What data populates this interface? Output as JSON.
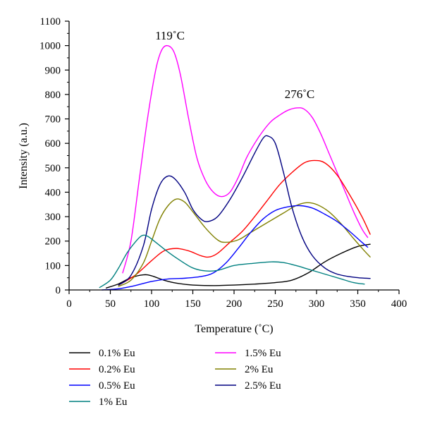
{
  "chart_data": {
    "type": "line",
    "xlabel": "Temperature (˚C)",
    "ylabel": "Intensity (a.u.)",
    "xlim": [
      0,
      400
    ],
    "ylim": [
      0,
      1100
    ],
    "xticks": [
      0,
      50,
      100,
      150,
      200,
      250,
      300,
      350,
      400
    ],
    "yticks": [
      0,
      100,
      200,
      300,
      400,
      500,
      600,
      700,
      800,
      900,
      1000,
      1100
    ],
    "grid": false,
    "legend_position": "bottom",
    "annotations": [
      {
        "text": "119˚C",
        "x": 119,
        "y": 1000
      },
      {
        "text": "276˚C",
        "x": 276,
        "y": 745
      }
    ],
    "series": [
      {
        "name": "0.1% Eu",
        "color": "#000000",
        "points": [
          [
            45,
            8
          ],
          [
            60,
            25
          ],
          [
            75,
            50
          ],
          [
            90,
            62
          ],
          [
            100,
            58
          ],
          [
            115,
            40
          ],
          [
            130,
            28
          ],
          [
            150,
            20
          ],
          [
            175,
            18
          ],
          [
            200,
            20
          ],
          [
            225,
            24
          ],
          [
            250,
            30
          ],
          [
            270,
            40
          ],
          [
            290,
            70
          ],
          [
            310,
            115
          ],
          [
            330,
            150
          ],
          [
            350,
            178
          ],
          [
            365,
            187
          ]
        ]
      },
      {
        "name": "1.5% Eu",
        "color": "#ff00ff",
        "points": [
          [
            65,
            70
          ],
          [
            75,
            200
          ],
          [
            85,
            450
          ],
          [
            95,
            700
          ],
          [
            105,
            900
          ],
          [
            112,
            980
          ],
          [
            119,
            1000
          ],
          [
            127,
            975
          ],
          [
            135,
            880
          ],
          [
            145,
            700
          ],
          [
            155,
            540
          ],
          [
            165,
            450
          ],
          [
            175,
            400
          ],
          [
            185,
            382
          ],
          [
            195,
            400
          ],
          [
            205,
            460
          ],
          [
            215,
            540
          ],
          [
            225,
            600
          ],
          [
            235,
            650
          ],
          [
            245,
            690
          ],
          [
            255,
            715
          ],
          [
            265,
            735
          ],
          [
            276,
            745
          ],
          [
            285,
            740
          ],
          [
            295,
            705
          ],
          [
            305,
            640
          ],
          [
            315,
            560
          ],
          [
            325,
            480
          ],
          [
            335,
            400
          ],
          [
            345,
            320
          ],
          [
            355,
            250
          ],
          [
            362,
            215
          ]
        ]
      },
      {
        "name": "0.2% Eu",
        "color": "#ff0000",
        "points": [
          [
            60,
            20
          ],
          [
            80,
            60
          ],
          [
            100,
            120
          ],
          [
            115,
            160
          ],
          [
            130,
            170
          ],
          [
            145,
            160
          ],
          [
            160,
            140
          ],
          [
            170,
            135
          ],
          [
            180,
            150
          ],
          [
            195,
            195
          ],
          [
            210,
            240
          ],
          [
            225,
            300
          ],
          [
            240,
            365
          ],
          [
            255,
            430
          ],
          [
            270,
            480
          ],
          [
            285,
            520
          ],
          [
            297,
            530
          ],
          [
            310,
            520
          ],
          [
            325,
            470
          ],
          [
            340,
            390
          ],
          [
            355,
            300
          ],
          [
            365,
            228
          ]
        ]
      },
      {
        "name": "2% Eu",
        "color": "#808000",
        "points": [
          [
            60,
            15
          ],
          [
            75,
            40
          ],
          [
            90,
            110
          ],
          [
            100,
            200
          ],
          [
            110,
            290
          ],
          [
            120,
            345
          ],
          [
            130,
            372
          ],
          [
            140,
            360
          ],
          [
            150,
            320
          ],
          [
            165,
            255
          ],
          [
            180,
            205
          ],
          [
            190,
            195
          ],
          [
            205,
            205
          ],
          [
            220,
            235
          ],
          [
            240,
            275
          ],
          [
            260,
            315
          ],
          [
            275,
            345
          ],
          [
            288,
            357
          ],
          [
            300,
            350
          ],
          [
            315,
            320
          ],
          [
            330,
            270
          ],
          [
            345,
            210
          ],
          [
            358,
            160
          ],
          [
            365,
            135
          ]
        ]
      },
      {
        "name": "0.5% Eu",
        "color": "#0000ff",
        "points": [
          [
            40,
            0
          ],
          [
            60,
            5
          ],
          [
            80,
            18
          ],
          [
            100,
            35
          ],
          [
            120,
            45
          ],
          [
            140,
            48
          ],
          [
            160,
            55
          ],
          [
            175,
            70
          ],
          [
            190,
            110
          ],
          [
            205,
            170
          ],
          [
            220,
            235
          ],
          [
            235,
            290
          ],
          [
            250,
            325
          ],
          [
            265,
            340
          ],
          [
            280,
            345
          ],
          [
            295,
            335
          ],
          [
            310,
            310
          ],
          [
            325,
            280
          ],
          [
            340,
            240
          ],
          [
            355,
            195
          ],
          [
            362,
            175
          ]
        ]
      },
      {
        "name": "2.5% Eu",
        "color": "#000080",
        "points": [
          [
            60,
            20
          ],
          [
            75,
            60
          ],
          [
            90,
            180
          ],
          [
            100,
            330
          ],
          [
            110,
            430
          ],
          [
            119,
            465
          ],
          [
            128,
            455
          ],
          [
            140,
            400
          ],
          [
            150,
            330
          ],
          [
            160,
            290
          ],
          [
            168,
            280
          ],
          [
            180,
            300
          ],
          [
            195,
            370
          ],
          [
            210,
            460
          ],
          [
            225,
            560
          ],
          [
            235,
            620
          ],
          [
            241,
            630
          ],
          [
            250,
            600
          ],
          [
            260,
            480
          ],
          [
            270,
            340
          ],
          [
            282,
            220
          ],
          [
            295,
            140
          ],
          [
            310,
            90
          ],
          [
            325,
            65
          ],
          [
            345,
            52
          ],
          [
            365,
            47
          ]
        ]
      },
      {
        "name": "1% Eu",
        "color": "#008080",
        "points": [
          [
            37,
            10
          ],
          [
            50,
            40
          ],
          [
            60,
            90
          ],
          [
            70,
            150
          ],
          [
            80,
            195
          ],
          [
            88,
            222
          ],
          [
            95,
            220
          ],
          [
            105,
            195
          ],
          [
            120,
            155
          ],
          [
            135,
            120
          ],
          [
            150,
            90
          ],
          [
            165,
            78
          ],
          [
            180,
            80
          ],
          [
            200,
            100
          ],
          [
            220,
            108
          ],
          [
            245,
            115
          ],
          [
            260,
            112
          ],
          [
            275,
            100
          ],
          [
            290,
            85
          ],
          [
            310,
            65
          ],
          [
            330,
            45
          ],
          [
            345,
            30
          ],
          [
            358,
            24
          ]
        ]
      }
    ]
  }
}
